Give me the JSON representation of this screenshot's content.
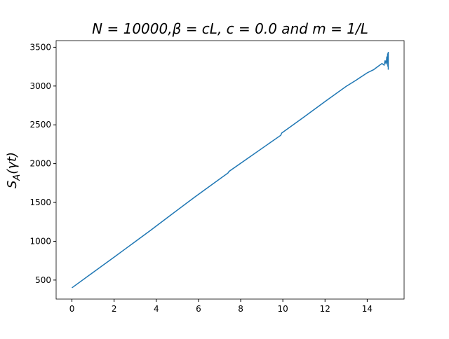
{
  "chart_data": {
    "type": "line",
    "title": "N = 10000,β = cL, c = 0.0 and m = 1/L",
    "ylabel": {
      "base": "S",
      "sub": "A",
      "rest": "(γt)"
    },
    "x": [
      0,
      1,
      2,
      2.5,
      3,
      3.7,
      4.6,
      5.8,
      7.4,
      7.45,
      9.9,
      9.95,
      11,
      12,
      13,
      13.5,
      14,
      14.3,
      14.5,
      14.7,
      14.8,
      14.85,
      14.9,
      14.93,
      14.95,
      14.97,
      14.98,
      15,
      15,
      15
    ],
    "series": [
      {
        "name": "S_A",
        "color": "#1f77b4",
        "values": [
          400,
          598,
          795,
          895,
          995,
          1135,
          1320,
          1565,
          1880,
          1900,
          2365,
          2395,
          2600,
          2800,
          2995,
          3080,
          3170,
          3210,
          3250,
          3290,
          3270,
          3330,
          3280,
          3380,
          3300,
          3420,
          3250,
          3440,
          3210,
          3400
        ]
      }
    ],
    "xlim": [
      -0.75,
      15.75
    ],
    "xticks": [
      0,
      2,
      4,
      6,
      8,
      10,
      12,
      14
    ],
    "ylim": [
      255,
      3585
    ],
    "yticks": [
      500,
      1000,
      1500,
      2000,
      2500,
      3000,
      3500
    ],
    "grid": false
  }
}
